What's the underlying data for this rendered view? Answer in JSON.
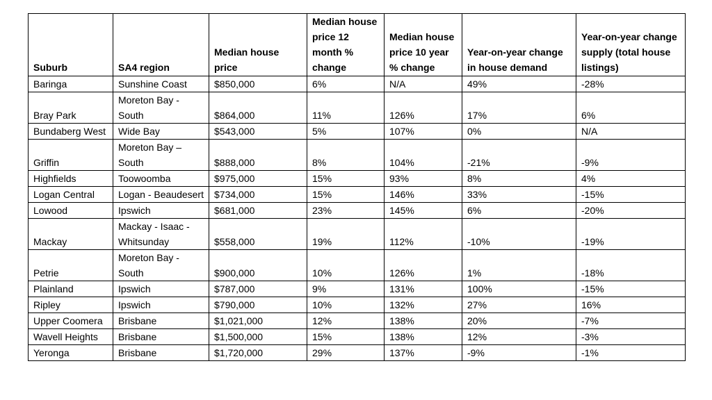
{
  "table": {
    "header": [
      "Suburb",
      "SA4 region",
      "Median house price",
      "Median house price 12 month % change",
      "Median house price 10 year % change",
      "Year-on-year change in house demand",
      "Year-on-year change supply (total house listings)"
    ],
    "rows": [
      [
        "Baringa",
        "Sunshine Coast",
        "$850,000",
        "6%",
        "N/A",
        "49%",
        "-28%"
      ],
      [
        "Bray Park",
        "Moreton Bay - South",
        "$864,000",
        "11%",
        "126%",
        "17%",
        "6%"
      ],
      [
        "Bundaberg West",
        "Wide Bay",
        "$543,000",
        "5%",
        "107%",
        "0%",
        "N/A"
      ],
      [
        "Griffin",
        "Moreton Bay – South",
        "$888,000",
        "8%",
        "104%",
        "-21%",
        "-9%"
      ],
      [
        "Highfields",
        "Toowoomba",
        "$975,000",
        "15%",
        "93%",
        "8%",
        "4%"
      ],
      [
        "Logan Central",
        "Logan - Beaudesert",
        "$734,000",
        "15%",
        "146%",
        "33%",
        "-15%"
      ],
      [
        "Lowood",
        "Ipswich",
        "$681,000",
        "23%",
        "145%",
        "6%",
        "-20%"
      ],
      [
        "Mackay",
        "Mackay - Isaac - Whitsunday",
        "$558,000",
        "19%",
        "112%",
        "-10%",
        "-19%"
      ],
      [
        "Petrie",
        "Moreton Bay - South",
        "$900,000",
        "10%",
        "126%",
        "1%",
        "-18%"
      ],
      [
        "Plainland",
        "Ipswich",
        "$787,000",
        "9%",
        "131%",
        "100%",
        "-15%"
      ],
      [
        "Ripley",
        "Ipswich",
        "$790,000",
        "10%",
        "132%",
        "27%",
        "16%"
      ],
      [
        "Upper Coomera",
        "Brisbane",
        "$1,021,000",
        "12%",
        "138%",
        "20%",
        "-7%"
      ],
      [
        "Wavell Heights",
        "Brisbane",
        "$1,500,000",
        "15%",
        "138%",
        "12%",
        "-3%"
      ],
      [
        "Yeronga",
        "Brisbane",
        "$1,720,000",
        "29%",
        "137%",
        "-9%",
        "-1%"
      ]
    ]
  }
}
